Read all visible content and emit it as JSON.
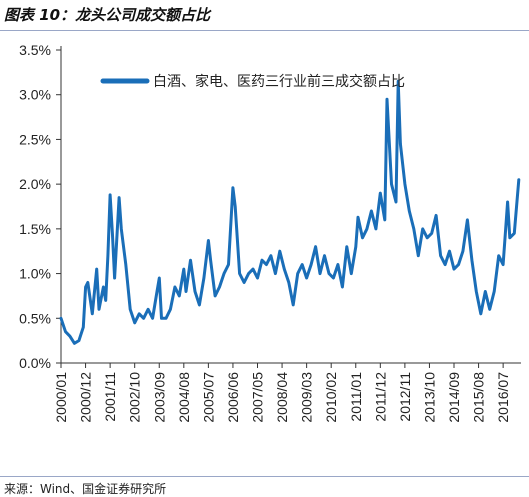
{
  "header": {
    "title": "图表 10：龙头公司成交额占比"
  },
  "footer": {
    "source": "来源：Wind、国金证券研究所"
  },
  "colors": {
    "series": "#1a6eb8",
    "axis": "#333333",
    "rule": "#9aa7c7"
  },
  "chart_data": {
    "type": "line",
    "title": "",
    "xlabel": "",
    "ylabel": "",
    "ylim": [
      0,
      0.035
    ],
    "y_ticks": [
      "0.0%",
      "0.5%",
      "1.0%",
      "1.5%",
      "2.0%",
      "2.5%",
      "3.0%",
      "3.5%"
    ],
    "x_ticks": [
      "2000/01",
      "2000/12",
      "2001/11",
      "2002/10",
      "2003/09",
      "2004/08",
      "2005/07",
      "2006/06",
      "2007/05",
      "2008/04",
      "2009/03",
      "2010/02",
      "2011/01",
      "2011/12",
      "2012/11",
      "2013/10",
      "2014/09",
      "2015/08",
      "2016/07"
    ],
    "x_range": [
      "2000/01",
      "2017/03"
    ],
    "grid": false,
    "legend_position": "top-right",
    "series": [
      {
        "name": "白酒、家电、医药三行业前三成交额占比",
        "color": "#1a6eb8",
        "points": [
          [
            "2000/01",
            0.005
          ],
          [
            "2000/03",
            0.0035
          ],
          [
            "2000/05",
            0.003
          ],
          [
            "2000/07",
            0.0022
          ],
          [
            "2000/09",
            0.0025
          ],
          [
            "2000/11",
            0.004
          ],
          [
            "2000/12",
            0.0085
          ],
          [
            "2001/01",
            0.009
          ],
          [
            "2001/03",
            0.0055
          ],
          [
            "2001/05",
            0.0105
          ],
          [
            "2001/06",
            0.006
          ],
          [
            "2001/08",
            0.0085
          ],
          [
            "2001/09",
            0.007
          ],
          [
            "2001/10",
            0.012
          ],
          [
            "2001/11",
            0.0188
          ],
          [
            "2001/12",
            0.0145
          ],
          [
            "2002/01",
            0.0095
          ],
          [
            "2002/03",
            0.0185
          ],
          [
            "2002/04",
            0.015
          ],
          [
            "2002/06",
            0.011
          ],
          [
            "2002/08",
            0.006
          ],
          [
            "2002/10",
            0.0045
          ],
          [
            "2002/12",
            0.0055
          ],
          [
            "2003/02",
            0.005
          ],
          [
            "2003/04",
            0.006
          ],
          [
            "2003/06",
            0.005
          ],
          [
            "2003/08",
            0.008
          ],
          [
            "2003/09",
            0.0095
          ],
          [
            "2003/10",
            0.005
          ],
          [
            "2003/12",
            0.005
          ],
          [
            "2004/02",
            0.006
          ],
          [
            "2004/04",
            0.0085
          ],
          [
            "2004/06",
            0.0075
          ],
          [
            "2004/08",
            0.0105
          ],
          [
            "2004/09",
            0.008
          ],
          [
            "2004/11",
            0.0115
          ],
          [
            "2005/01",
            0.008
          ],
          [
            "2005/03",
            0.0065
          ],
          [
            "2005/05",
            0.0095
          ],
          [
            "2005/07",
            0.0137
          ],
          [
            "2005/08",
            0.0115
          ],
          [
            "2005/10",
            0.0075
          ],
          [
            "2005/12",
            0.0085
          ],
          [
            "2006/02",
            0.01
          ],
          [
            "2006/04",
            0.011
          ],
          [
            "2006/06",
            0.0196
          ],
          [
            "2006/07",
            0.0175
          ],
          [
            "2006/09",
            0.01
          ],
          [
            "2006/11",
            0.009
          ],
          [
            "2007/01",
            0.01
          ],
          [
            "2007/03",
            0.0105
          ],
          [
            "2007/05",
            0.0095
          ],
          [
            "2007/07",
            0.0115
          ],
          [
            "2007/09",
            0.011
          ],
          [
            "2007/11",
            0.012
          ],
          [
            "2008/01",
            0.01
          ],
          [
            "2008/03",
            0.0125
          ],
          [
            "2008/05",
            0.0105
          ],
          [
            "2008/07",
            0.009
          ],
          [
            "2008/09",
            0.0065
          ],
          [
            "2008/11",
            0.01
          ],
          [
            "2009/01",
            0.011
          ],
          [
            "2009/03",
            0.0095
          ],
          [
            "2009/05",
            0.011
          ],
          [
            "2009/07",
            0.013
          ],
          [
            "2009/09",
            0.01
          ],
          [
            "2009/11",
            0.012
          ],
          [
            "2010/01",
            0.01
          ],
          [
            "2010/03",
            0.0095
          ],
          [
            "2010/05",
            0.011
          ],
          [
            "2010/07",
            0.0085
          ],
          [
            "2010/09",
            0.013
          ],
          [
            "2010/11",
            0.01
          ],
          [
            "2011/01",
            0.013
          ],
          [
            "2011/02",
            0.0163
          ],
          [
            "2011/04",
            0.014
          ],
          [
            "2011/06",
            0.015
          ],
          [
            "2011/08",
            0.017
          ],
          [
            "2011/10",
            0.015
          ],
          [
            "2011/12",
            0.019
          ],
          [
            "2012/02",
            0.016
          ],
          [
            "2012/03",
            0.0295
          ],
          [
            "2012/05",
            0.02
          ],
          [
            "2012/07",
            0.018
          ],
          [
            "2012/08",
            0.0315
          ],
          [
            "2012/09",
            0.0245
          ],
          [
            "2012/11",
            0.02
          ],
          [
            "2013/01",
            0.017
          ],
          [
            "2013/03",
            0.015
          ],
          [
            "2013/05",
            0.012
          ],
          [
            "2013/07",
            0.015
          ],
          [
            "2013/09",
            0.014
          ],
          [
            "2013/11",
            0.0145
          ],
          [
            "2014/01",
            0.0165
          ],
          [
            "2014/03",
            0.012
          ],
          [
            "2014/05",
            0.011
          ],
          [
            "2014/07",
            0.0125
          ],
          [
            "2014/09",
            0.0105
          ],
          [
            "2014/11",
            0.011
          ],
          [
            "2015/01",
            0.0125
          ],
          [
            "2015/03",
            0.016
          ],
          [
            "2015/05",
            0.0115
          ],
          [
            "2015/07",
            0.008
          ],
          [
            "2015/09",
            0.0055
          ],
          [
            "2015/11",
            0.008
          ],
          [
            "2016/01",
            0.006
          ],
          [
            "2016/03",
            0.008
          ],
          [
            "2016/05",
            0.012
          ],
          [
            "2016/07",
            0.011
          ],
          [
            "2016/09",
            0.018
          ],
          [
            "2016/10",
            0.014
          ],
          [
            "2016/12",
            0.0145
          ],
          [
            "2017/02",
            0.0205
          ]
        ]
      }
    ]
  }
}
